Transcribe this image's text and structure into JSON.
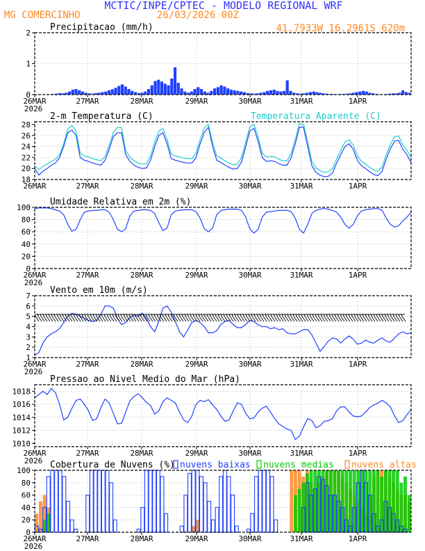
{
  "header": {
    "title": "MCTIC/INPE/CPTEC - MODELO REGIONAL WRF",
    "location": "MG COMERCINHO",
    "run": "26/03/2026 00Z",
    "coords": "41.7933W 16.2961S 620m"
  },
  "colors": {
    "title": "#3333ff",
    "orange": "#ff8822",
    "blue": "#2040ff",
    "cyan": "#22cccc",
    "green": "#00cc00",
    "black": "#000000"
  },
  "x_axis": {
    "labels": [
      "26MAR",
      "27MAR",
      "28MAR",
      "29MAR",
      "30MAR",
      "31MAR",
      "1APR"
    ],
    "year": "2026"
  },
  "chart_data": [
    {
      "id": "precip",
      "type": "bar",
      "title": "Precipitacao (mm/h)",
      "ylim": [
        0,
        2
      ],
      "yticks": [
        "0",
        "1",
        "2"
      ],
      "year_shown": true,
      "series": [
        {
          "name": "precip",
          "color": "#2040ff",
          "values": [
            0,
            0,
            0,
            0,
            0.01,
            0.02,
            0.03,
            0.05,
            0.04,
            0.06,
            0.1,
            0.16,
            0.18,
            0.14,
            0.1,
            0.06,
            0.04,
            0.03,
            0.05,
            0.06,
            0.08,
            0.1,
            0.14,
            0.17,
            0.22,
            0.28,
            0.33,
            0.26,
            0.18,
            0.12,
            0.08,
            0.05,
            0.06,
            0.1,
            0.18,
            0.3,
            0.44,
            0.48,
            0.42,
            0.35,
            0.3,
            0.52,
            0.88,
            0.38,
            0.2,
            0.1,
            0.06,
            0.1,
            0.18,
            0.24,
            0.18,
            0.1,
            0.06,
            0.12,
            0.2,
            0.24,
            0.3,
            0.26,
            0.2,
            0.16,
            0.14,
            0.12,
            0.1,
            0.08,
            0.05,
            0.04,
            0.03,
            0.04,
            0.06,
            0.08,
            0.12,
            0.14,
            0.16,
            0.12,
            0.1,
            0.12,
            0.46,
            0.12,
            0.06,
            0.04,
            0.03,
            0.04,
            0.06,
            0.08,
            0.1,
            0.08,
            0.06,
            0.04,
            0.03,
            0.02,
            0.02,
            0.01,
            0.02,
            0.02,
            0.03,
            0.04,
            0.06,
            0.08,
            0.1,
            0.12,
            0.1,
            0.06,
            0.04,
            0.02,
            0.01,
            0,
            0.02,
            0.03,
            0.04,
            0.04,
            0.06,
            0.14,
            0.08,
            0.06
          ]
        }
      ]
    },
    {
      "id": "temp",
      "type": "line",
      "title": "2-m Temperatura (C)",
      "title2": "Temperatura Aparente (C)",
      "ylim": [
        18,
        28.5
      ],
      "yticks": [
        "18",
        "20",
        "22",
        "24",
        "26",
        "28"
      ],
      "year_shown": false,
      "series": [
        {
          "name": "Temperatura",
          "color": "#2040ff",
          "values": [
            20,
            18.8,
            19.5,
            20,
            20.6,
            21,
            22,
            24,
            26.5,
            27,
            26,
            22,
            21.5,
            21.3,
            21,
            20.8,
            20.6,
            21.5,
            23.5,
            25.8,
            26.5,
            26.5,
            22.5,
            21.3,
            20.6,
            20.2,
            20,
            20.1,
            21.5,
            24,
            26,
            26.5,
            24.5,
            21.8,
            21.5,
            21.3,
            21.1,
            21,
            21,
            22,
            24.5,
            26.6,
            27.5,
            24,
            21.5,
            21.1,
            20.6,
            20.2,
            19.9,
            20,
            21.2,
            24,
            26.8,
            27.3,
            25,
            22,
            21.3,
            21.4,
            21.3,
            20.9,
            20.6,
            20.6,
            22,
            24.5,
            27.5,
            27.5,
            24,
            20.5,
            19.3,
            18.8,
            18.5,
            18.6,
            19.2,
            21,
            22.5,
            24,
            24.5,
            23.5,
            21.5,
            20.5,
            20,
            19.4,
            18.9,
            18.7,
            19.5,
            21.8,
            23.6,
            25,
            25.1,
            23.5,
            22.5,
            21
          ]
        },
        {
          "name": "Temperatura Aparente",
          "color": "#22cccc",
          "values": [
            20.5,
            19.8,
            20.4,
            20.8,
            21.3,
            21.7,
            22.5,
            24.5,
            27.2,
            27.8,
            26.8,
            22.8,
            22.3,
            22.1,
            21.8,
            21.6,
            21.4,
            22.2,
            24.2,
            26.5,
            27.5,
            27.4,
            23.2,
            22.1,
            21.4,
            21,
            20.8,
            20.9,
            22.3,
            24.8,
            26.8,
            27.3,
            25.3,
            22.6,
            22.3,
            22.1,
            21.9,
            21.8,
            21.8,
            22.8,
            25.3,
            27.4,
            28,
            24.8,
            22.3,
            21.9,
            21.4,
            21,
            20.7,
            20.8,
            22,
            24.8,
            27.6,
            28,
            25.8,
            22.8,
            22.1,
            22.2,
            22.1,
            21.7,
            21.4,
            21.4,
            22.8,
            25.3,
            28.2,
            28,
            24.8,
            21.3,
            20.1,
            19.6,
            19.3,
            19.4,
            20,
            21.8,
            23.3,
            24.8,
            25.2,
            24.3,
            22.3,
            21.3,
            20.8,
            20.2,
            19.7,
            19.5,
            20.3,
            22.6,
            24.4,
            25.8,
            25.9,
            24.3,
            23.3,
            22
          ]
        }
      ]
    },
    {
      "id": "rh",
      "type": "line",
      "title": "Umidade Relativa em 2m (%)",
      "ylim": [
        0,
        100
      ],
      "yticks": [
        "0",
        "20",
        "40",
        "60",
        "80",
        "100"
      ],
      "year_shown": true,
      "series": [
        {
          "name": "UR",
          "color": "#2040ff",
          "values": [
            98,
            99,
            99,
            99,
            98,
            96,
            94,
            88,
            72,
            61,
            64,
            80,
            92,
            94,
            95,
            95,
            96,
            96,
            92,
            80,
            64,
            60,
            65,
            86,
            94,
            95,
            96,
            96,
            95,
            90,
            75,
            62,
            66,
            88,
            94,
            95,
            96,
            96,
            96,
            93,
            82,
            65,
            60,
            66,
            88,
            95,
            96,
            97,
            97,
            97,
            95,
            84,
            65,
            58,
            64,
            84,
            92,
            93,
            94,
            95,
            95,
            95,
            93,
            82,
            64,
            58,
            72,
            90,
            95,
            97,
            98,
            97,
            95,
            92,
            84,
            72,
            66,
            72,
            86,
            94,
            96,
            97,
            98,
            98,
            95,
            82,
            72,
            68,
            70,
            78,
            84,
            92
          ]
        }
      ]
    },
    {
      "id": "wind",
      "type": "line",
      "title": "Vento em 10m (m/s)",
      "ylim": [
        1,
        7
      ],
      "yticks": [
        "1",
        "2",
        "3",
        "4",
        "5",
        "6",
        "7"
      ],
      "year_shown": true,
      "series": [
        {
          "name": "Vento",
          "color": "#2040ff",
          "values": [
            1.2,
            1.5,
            2.4,
            3,
            3.3,
            3.5,
            3.8,
            4.4,
            5,
            5.3,
            5.2,
            5,
            4.8,
            4.6,
            4.5,
            4.6,
            5.2,
            6,
            6,
            5.8,
            4.8,
            4.2,
            4.4,
            4.9,
            5.1,
            5,
            5.3,
            4.8,
            4,
            3.5,
            4.5,
            5.8,
            6,
            5.4,
            4.5,
            3.5,
            3,
            3.7,
            4.4,
            4.6,
            4.4,
            4,
            3.4,
            3.4,
            3.6,
            4.2,
            4.5,
            4.6,
            4.2,
            3.9,
            3.9,
            4.2,
            4.6,
            4.5,
            4.2,
            4,
            4,
            3.8,
            3.9,
            3.7,
            3.8,
            3.4,
            3.3,
            3.3,
            3.5,
            3.7,
            3.7,
            3.2,
            2.4,
            1.6,
            2.1,
            2.6,
            2.9,
            2.8,
            2.4,
            2.8,
            3.1,
            2.8,
            2.3,
            2.4,
            2.7,
            2.5,
            2.4,
            2.7,
            2.9,
            2.6,
            2.5,
            2.9,
            3.3,
            3.5,
            3.3,
            3.4
          ]
        }
      ]
    },
    {
      "id": "pres",
      "type": "line",
      "title": "Pressao ao Nivel Medio do Mar (hPa)",
      "ylim": [
        1009.5,
        1019
      ],
      "yticks": [
        "1010",
        "1012",
        "1014",
        "1016",
        "1018"
      ],
      "year_shown": true,
      "series": [
        {
          "name": "PNMM",
          "color": "#2040ff",
          "values": [
            1017,
            1017.5,
            1018,
            1017.5,
            1018.4,
            1017.8,
            1016,
            1013.6,
            1014,
            1015.4,
            1016.6,
            1016.8,
            1016,
            1015,
            1013.5,
            1013.8,
            1015.5,
            1016.8,
            1016.2,
            1014.6,
            1013,
            1013.1,
            1014.8,
            1016.5,
            1017.2,
            1017.6,
            1017,
            1016.3,
            1015.8,
            1014.5,
            1015,
            1016.4,
            1017,
            1016.6,
            1016.2,
            1014.8,
            1013.6,
            1013.2,
            1014.2,
            1016,
            1016.6,
            1016.4,
            1016.7,
            1015.9,
            1015.2,
            1014.2,
            1013.4,
            1013.6,
            1015,
            1016.2,
            1016,
            1014.6,
            1013.8,
            1013.9,
            1014.8,
            1015.4,
            1015.7,
            1014.8,
            1013.8,
            1013,
            1012.6,
            1012.2,
            1012,
            1010.6,
            1011.1,
            1012.5,
            1013.8,
            1013.5,
            1012.4,
            1012.7,
            1013.4,
            1013.5,
            1013.8,
            1015,
            1015.6,
            1015.6,
            1014.8,
            1014.2,
            1014.1,
            1014.2,
            1014.8,
            1015.5,
            1015.9,
            1016.2,
            1016.6,
            1016.2,
            1015.6,
            1014.2,
            1013.2,
            1013.5,
            1014.4,
            1015.2
          ]
        }
      ]
    },
    {
      "id": "clouds",
      "type": "bar",
      "title": "Cobertura de Nuvens (%)",
      "ylim": [
        0,
        100
      ],
      "yticks": [
        "0",
        "20",
        "40",
        "60",
        "80",
        "100"
      ],
      "year_shown": true,
      "legend": [
        "nuvens baixas",
        "nuvens medias",
        "nuvens altas"
      ],
      "series": [
        {
          "name": "nuvens baixas",
          "color": "#2040ff",
          "values": [
            10,
            5,
            40,
            90,
            100,
            100,
            100,
            90,
            50,
            20,
            5,
            0,
            0,
            60,
            100,
            100,
            100,
            100,
            100,
            80,
            20,
            0,
            0,
            0,
            0,
            0,
            5,
            40,
            100,
            100,
            100,
            100,
            90,
            30,
            0,
            0,
            0,
            10,
            60,
            95,
            100,
            100,
            90,
            80,
            50,
            20,
            40,
            90,
            100,
            90,
            60,
            10,
            0,
            0,
            5,
            30,
            90,
            100,
            100,
            100,
            90,
            20,
            0,
            0,
            0,
            0,
            0,
            0,
            40,
            80,
            60,
            70,
            90,
            85,
            75,
            60,
            60,
            50,
            40,
            20,
            10,
            40,
            80,
            100,
            80,
            60,
            30,
            10,
            20,
            50,
            40,
            30,
            20,
            10,
            5,
            0
          ]
        },
        {
          "name": "nuvens medias",
          "color": "#00cc00",
          "values": [
            0,
            0,
            20,
            30,
            0,
            0,
            0,
            0,
            0,
            0,
            0,
            0,
            0,
            0,
            0,
            0,
            0,
            0,
            0,
            0,
            0,
            0,
            0,
            0,
            0,
            0,
            0,
            0,
            0,
            0,
            0,
            0,
            0,
            0,
            0,
            0,
            0,
            0,
            0,
            0,
            0,
            0,
            0,
            0,
            0,
            0,
            0,
            0,
            0,
            0,
            0,
            0,
            0,
            0,
            0,
            0,
            0,
            0,
            0,
            0,
            0,
            0,
            0,
            0,
            0,
            0,
            60,
            70,
            80,
            95,
            100,
            100,
            100,
            100,
            100,
            100,
            100,
            100,
            100,
            100,
            100,
            100,
            100,
            100,
            100,
            100,
            100,
            100,
            90,
            100,
            100,
            100,
            100,
            80,
            90,
            60
          ]
        },
        {
          "name": "nuvens altas",
          "color": "#ff8822",
          "values": [
            30,
            50,
            60,
            40,
            0,
            0,
            0,
            0,
            0,
            0,
            0,
            0,
            0,
            0,
            0,
            0,
            0,
            0,
            0,
            0,
            0,
            0,
            0,
            0,
            0,
            0,
            0,
            0,
            0,
            0,
            0,
            0,
            0,
            0,
            0,
            0,
            0,
            0,
            0,
            0,
            10,
            20,
            0,
            0,
            0,
            0,
            0,
            0,
            0,
            0,
            0,
            0,
            0,
            0,
            0,
            0,
            0,
            0,
            0,
            0,
            0,
            0,
            0,
            0,
            0,
            100,
            100,
            100,
            90,
            100,
            80,
            70,
            80,
            90,
            100,
            100,
            100,
            100,
            90,
            80,
            70,
            60,
            50,
            40,
            30,
            60,
            90,
            100,
            100,
            100,
            90,
            80,
            70,
            60,
            60,
            50
          ]
        }
      ]
    }
  ]
}
